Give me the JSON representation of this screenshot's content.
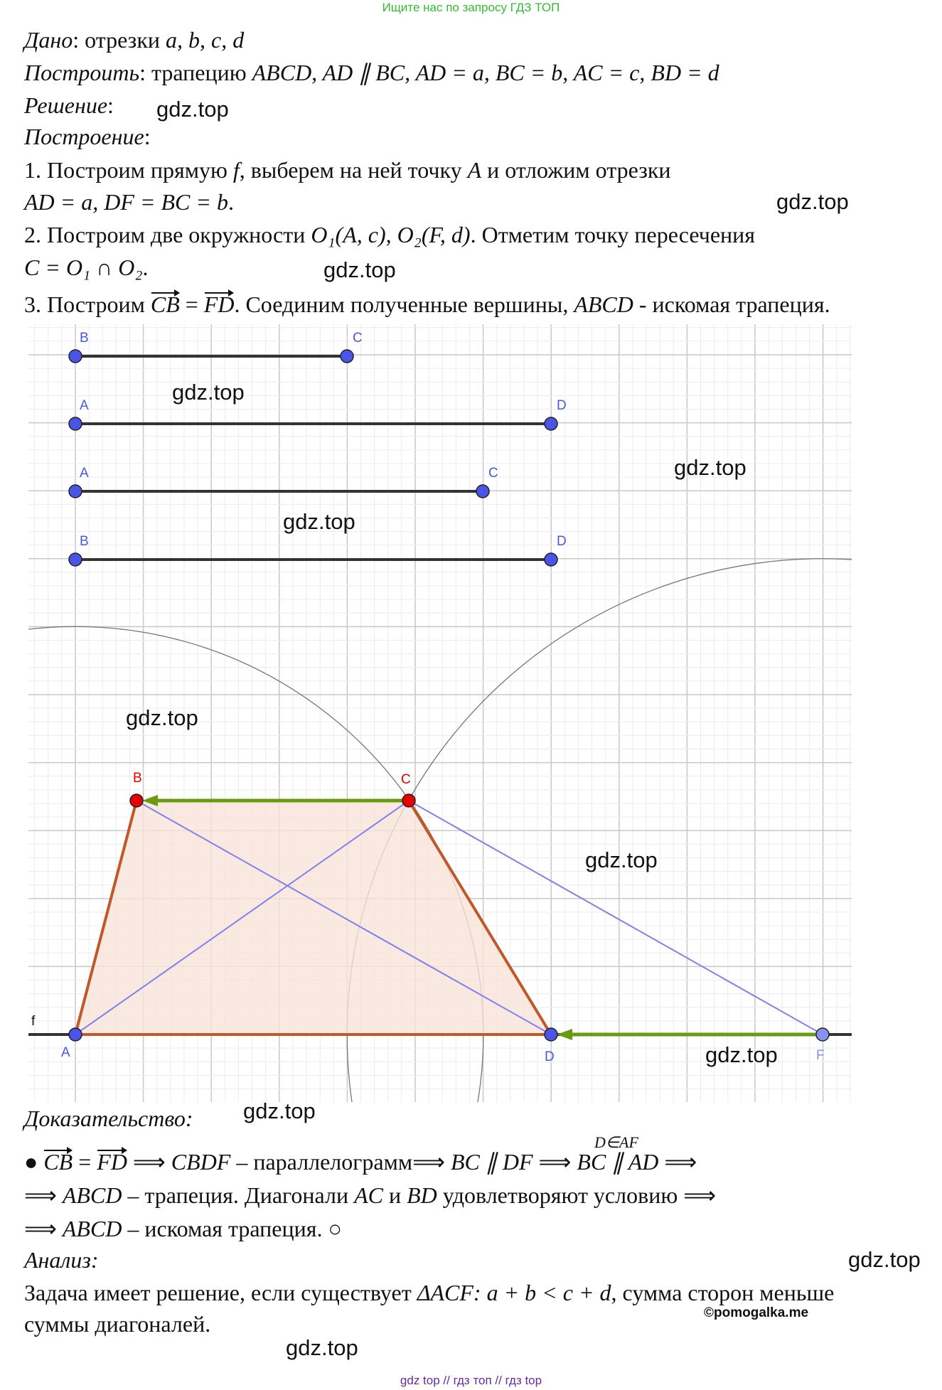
{
  "header_banner": "Ищите нас по запросу ГДЗ ТОП",
  "lines_top": [
    [
      {
        "t": "Дано",
        "c": "i"
      },
      {
        "t": ": отрезки "
      },
      {
        "t": "a, b, c, d",
        "c": "i"
      }
    ],
    [
      {
        "t": "Построить",
        "c": "i"
      },
      {
        "t": ": трапецию "
      },
      {
        "t": "ABCD, AD ∥ BC, AD = a, BC = b, AC = c, BD = d",
        "c": "i"
      }
    ],
    [
      {
        "t": "Решение",
        "c": "i"
      },
      {
        "t": ":"
      }
    ],
    [
      {
        "t": "Построение",
        "c": "i"
      },
      {
        "t": ":"
      }
    ],
    [
      {
        "t": "1. Построим прямую "
      },
      {
        "t": "f",
        "c": "i"
      },
      {
        "t": ", выберем на ней точку "
      },
      {
        "t": "A",
        "c": "i"
      },
      {
        "t": " и отложим отрезки"
      }
    ],
    [
      {
        "t": " AD = a, DF = BC = b",
        "c": "i"
      },
      {
        "t": "."
      }
    ],
    [
      {
        "t": "2. Построим две окружности "
      },
      {
        "t": "O₁(A, c), O₂(F, d)",
        "c": "i"
      },
      {
        "t": ". Отметим точку пересечения"
      }
    ],
    [
      {
        "t": " C = O₁ ∩ O₂",
        "c": "i"
      },
      {
        "t": "."
      }
    ],
    [
      {
        "t": "3. Построим "
      },
      {
        "t": "CB",
        "c": "vec"
      },
      {
        "t": " = "
      },
      {
        "t": "FD",
        "c": "vec"
      },
      {
        "t": ". Соединим полученные вершины, "
      },
      {
        "t": "ABCD",
        "c": "i"
      },
      {
        "t": " - искомая трапеция."
      }
    ]
  ],
  "lines_bottom": [
    [
      {
        "t": "Доказательство:",
        "c": "i"
      }
    ],
    [
      {
        "t": "● "
      },
      {
        "t": "CB",
        "c": "vec"
      },
      {
        "t": " = "
      },
      {
        "t": "FD",
        "c": "vec"
      },
      {
        "t": " ⟹ "
      },
      {
        "t": "CBDF",
        "c": "i"
      },
      {
        "t": " – параллелограмм⟹ "
      },
      {
        "t": "BC ∥ DF",
        "c": "i"
      },
      {
        "t": "  ⟹  "
      },
      {
        "t": "BC ∥ AD",
        "c": "i"
      },
      {
        "t": " ⟹"
      }
    ],
    [
      {
        "t": "⟹ "
      },
      {
        "t": "ABCD",
        "c": "i"
      },
      {
        "t": " – трапеция. Диагонали "
      },
      {
        "t": "AC",
        "c": "i"
      },
      {
        "t": " и "
      },
      {
        "t": "BD",
        "c": "i"
      },
      {
        "t": " удовлетворяют условию ⟹"
      }
    ],
    [
      {
        "t": "⟹ "
      },
      {
        "t": "ABCD",
        "c": "i"
      },
      {
        "t": " – искомая трапеция. ○"
      }
    ],
    [
      {
        "t": "Анализ:",
        "c": "i"
      }
    ],
    [
      {
        "t": "Задача имеет решение, если существует "
      },
      {
        "t": "ΔACF: a + b < c + d",
        "c": "i"
      },
      {
        "t": ", сумма сторон меньше"
      }
    ],
    [
      {
        "t": "суммы диагоналей."
      }
    ]
  ],
  "arrow_condition": "D∈AF",
  "watermark": "gdz.top",
  "copyright": "©pomogalka.me",
  "footer": "gdz top // гдз топ // гдз top",
  "figure": {
    "given_segments": [
      {
        "name": "b",
        "p1": "B",
        "p2": "C"
      },
      {
        "name": "a",
        "p1": "A",
        "p2": "D"
      },
      {
        "name": "c",
        "p1": "A",
        "p2": "C"
      },
      {
        "name": "d",
        "p1": "B",
        "p2": "D"
      }
    ],
    "line_label": "f",
    "points": {
      "A": "A",
      "B": "B",
      "C": "C",
      "D": "D",
      "F": "F"
    },
    "colors": {
      "point_blue": "#4a55e8",
      "point_red": "#e80000",
      "trapezoid": "#c0582a",
      "fill": "#f8e3da",
      "vector": "#6a9a10",
      "diagonal": "#8080f0",
      "grid": "#c8c8c8"
    }
  }
}
